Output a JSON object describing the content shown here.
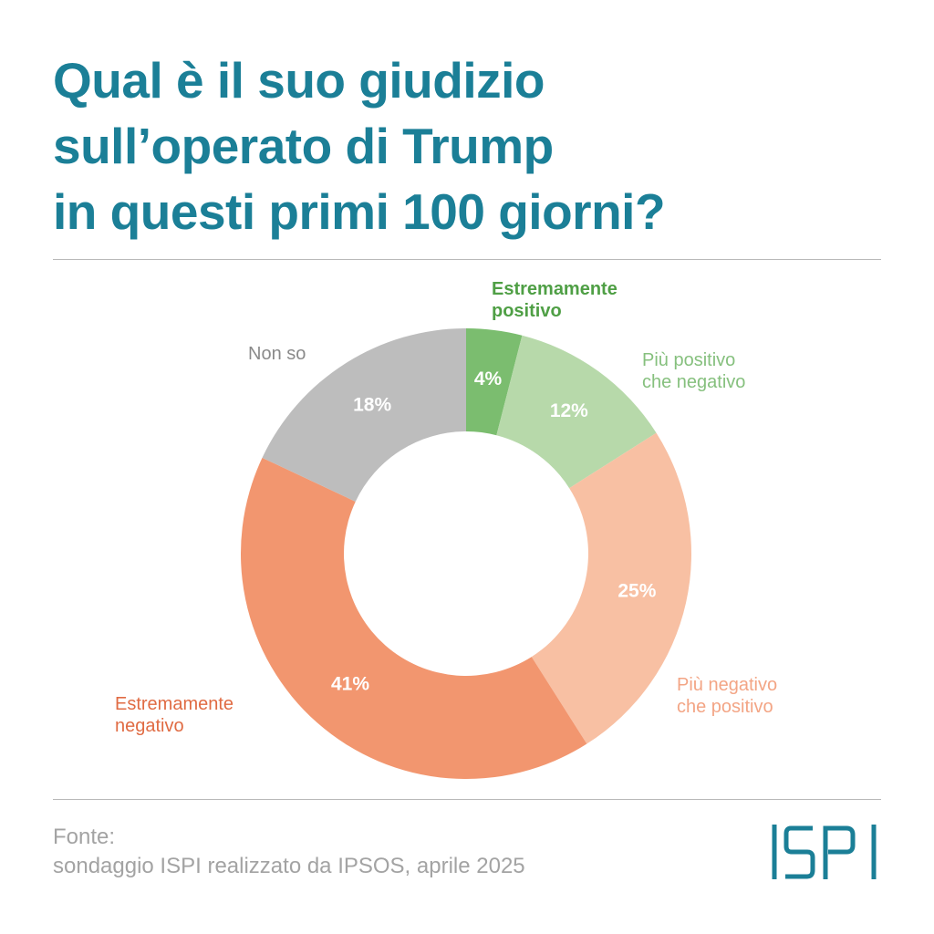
{
  "title_lines": [
    "Qual è il suo giudizio",
    "sull’operato di Trump",
    "in questi primi 100 giorni?"
  ],
  "source_lines": [
    "Fonte:",
    "sondaggio ISPI realizzato da IPSOS, aprile 2025"
  ],
  "logo": {
    "text": "ISPI",
    "color": "#1b7f97"
  },
  "chart_data": {
    "type": "pie",
    "title": "Qual è il suo giudizio sull’operato di Trump in questi primi 100 giorni?",
    "categories": [
      "Estremamente positivo",
      "Più positivo che negativo",
      "Più negativo che positivo",
      "Estremamente negativo",
      "Non so"
    ],
    "values": [
      4,
      12,
      25,
      41,
      18
    ],
    "value_labels": [
      "4%",
      "12%",
      "25%",
      "41%",
      "18%"
    ],
    "colors": [
      "#7bbd6f",
      "#b7d9aa",
      "#f8c0a3",
      "#f2966f",
      "#bdbdbd"
    ],
    "label_colors": [
      "#4f9f45",
      "#86c07e",
      "#f3a585",
      "#e06b43",
      "#8a8a8a"
    ],
    "legend": "none",
    "grid": false
  }
}
